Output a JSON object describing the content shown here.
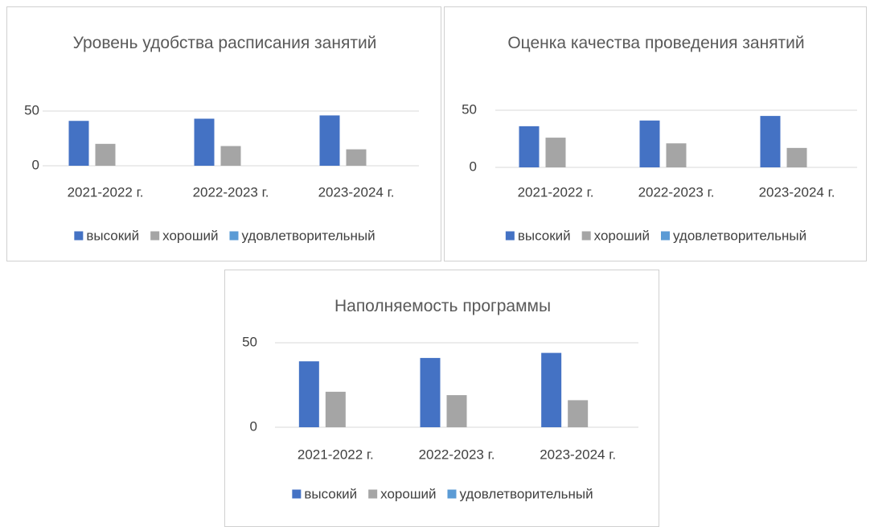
{
  "chart_data": [
    {
      "type": "bar",
      "title": "Уровень удобства расписания занятий",
      "categories": [
        "2021-2022 г.",
        "2022-2023 г.",
        "2023-2024 г."
      ],
      "series": [
        {
          "name": "высокий",
          "color": "#4472c4",
          "values": [
            41,
            43,
            46
          ]
        },
        {
          "name": "хороший",
          "color": "#a5a5a5",
          "values": [
            20,
            18,
            15
          ]
        },
        {
          "name": "удовлетворительный",
          "color": "#5b9bd5",
          "values": [
            0,
            0,
            0
          ]
        }
      ],
      "ylim": [
        0,
        50
      ],
      "yticks": [
        0,
        50
      ],
      "grid": true,
      "legend": "bottom"
    },
    {
      "type": "bar",
      "title": "Оценка качества проведения занятий",
      "categories": [
        "2021-2022 г.",
        "2022-2023 г.",
        "2023-2024 г."
      ],
      "series": [
        {
          "name": "высокий",
          "color": "#4472c4",
          "values": [
            36,
            41,
            45
          ]
        },
        {
          "name": "хороший",
          "color": "#a5a5a5",
          "values": [
            26,
            21,
            17
          ]
        },
        {
          "name": "удовлетворительный",
          "color": "#5b9bd5",
          "values": [
            0,
            0,
            0
          ]
        }
      ],
      "ylim": [
        0,
        50
      ],
      "yticks": [
        0,
        50
      ],
      "grid": true,
      "legend": "bottom"
    },
    {
      "type": "bar",
      "title": "Наполняемость программы",
      "categories": [
        "2021-2022 г.",
        "2022-2023 г.",
        "2023-2024 г."
      ],
      "series": [
        {
          "name": "высокий",
          "color": "#4472c4",
          "values": [
            39,
            41,
            44
          ]
        },
        {
          "name": "хороший",
          "color": "#a5a5a5",
          "values": [
            21,
            19,
            16
          ]
        },
        {
          "name": "удовлетворительный",
          "color": "#5b9bd5",
          "values": [
            0,
            0,
            0
          ]
        }
      ],
      "ylim": [
        0,
        50
      ],
      "yticks": [
        0,
        50
      ],
      "grid": true,
      "legend": "bottom"
    }
  ]
}
